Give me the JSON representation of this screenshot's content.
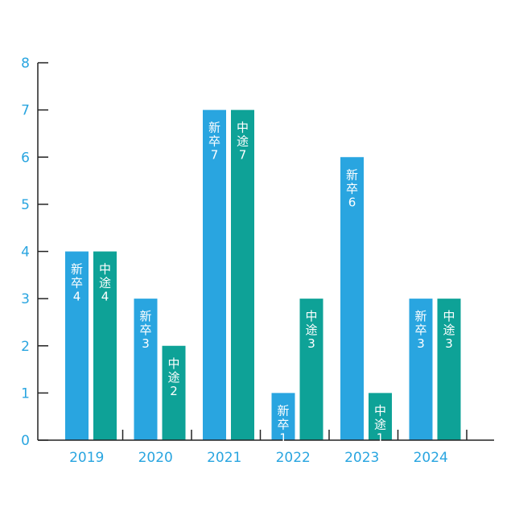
{
  "chart_data": {
    "type": "bar",
    "title": "",
    "xlabel": "",
    "ylabel": "",
    "categories": [
      "2019",
      "2020",
      "2021",
      "2022",
      "2023",
      "2024"
    ],
    "ylim": [
      0,
      8
    ],
    "yticks": [
      0,
      1,
      2,
      3,
      4,
      5,
      6,
      7,
      8
    ],
    "grid": false,
    "legend": "none",
    "series": [
      {
        "label_text": "新卒",
        "color": "#29a5e0",
        "values": [
          4,
          3,
          7,
          1,
          6,
          3
        ]
      },
      {
        "label_text": "中途",
        "color": "#0ea297",
        "values": [
          4,
          2,
          7,
          3,
          1,
          3
        ]
      }
    ],
    "colors": {
      "tick_label": "#29a5e0",
      "axis": "#222222",
      "bar_text": "#ffffff"
    }
  }
}
